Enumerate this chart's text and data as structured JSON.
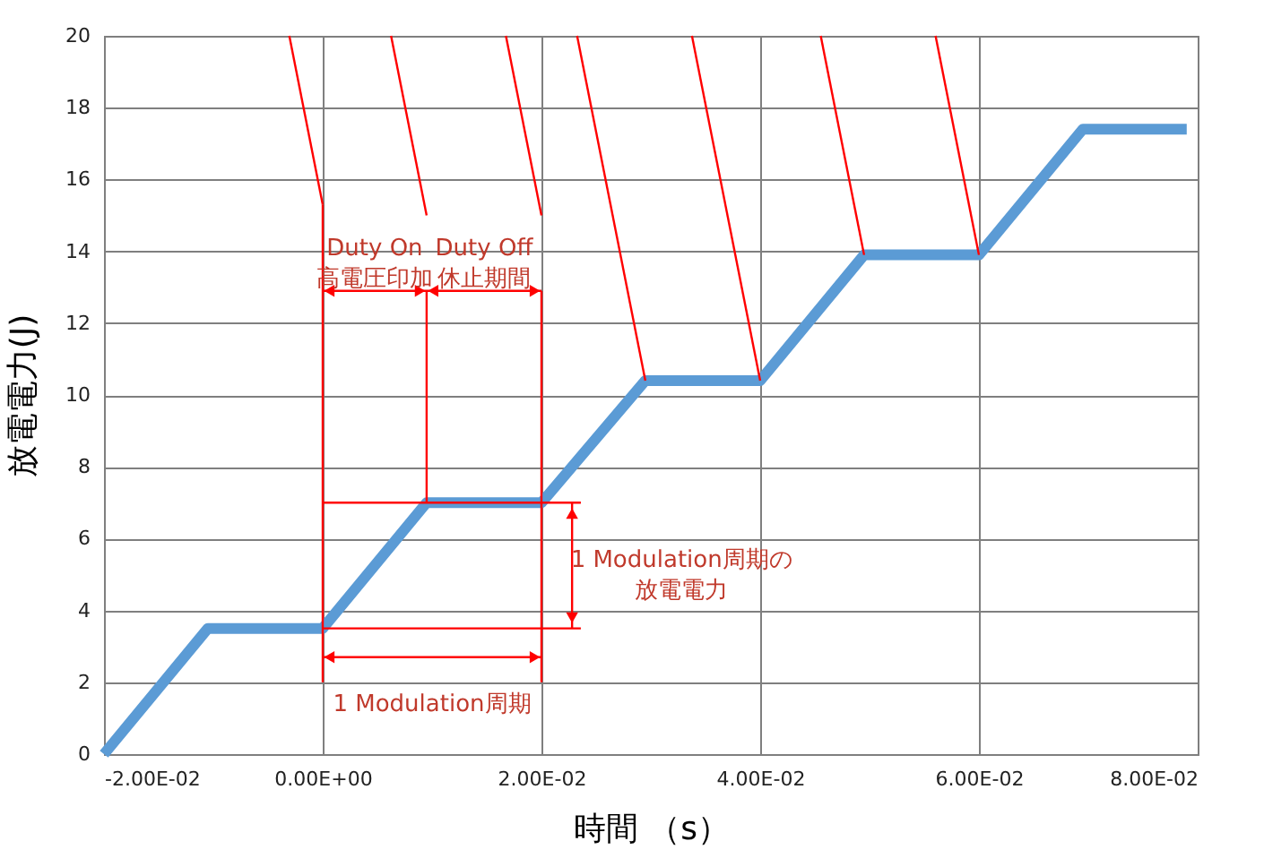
{
  "chart_data": {
    "type": "line",
    "xlabel": "時間 （s）",
    "ylabel": "放電電力(J)",
    "x": [
      -0.02,
      -0.0105,
      0,
      0.0095,
      0.02,
      0.0295,
      0.04,
      0.0495,
      0.06,
      0.0695,
      0.079
    ],
    "series": [
      {
        "color": "#5b9bd5",
        "values": [
          0,
          3.5,
          3.5,
          7,
          7,
          10.4,
          10.4,
          13.9,
          13.9,
          17.4,
          17.4
        ]
      }
    ],
    "xlim": [
      -0.02,
      0.08
    ],
    "xticks": [
      {
        "value": -0.02,
        "label": "-2.00E-02"
      },
      {
        "value": 0,
        "label": "0.00E+00"
      },
      {
        "value": 0.02,
        "label": "2.00E-02"
      },
      {
        "value": 0.04,
        "label": "4.00E-02"
      },
      {
        "value": 0.06,
        "label": "6.00E-02"
      },
      {
        "value": 0.08,
        "label": "8.00E-02"
      }
    ],
    "ylim": [
      0,
      20
    ],
    "yticks": [
      0,
      2,
      4,
      6,
      8,
      10,
      12,
      14,
      16,
      18,
      20
    ],
    "grid": true,
    "legend": false,
    "marker": "none",
    "line_style": "solid",
    "annotations": [
      {
        "text": "Duty On\n高電圧印加",
        "x": 0.0095,
        "y": 7
      },
      "Duty Off\n休止期間",
      "1 Modulation周期",
      "1 Modulation周期の放電電力"
    ]
  }
}
